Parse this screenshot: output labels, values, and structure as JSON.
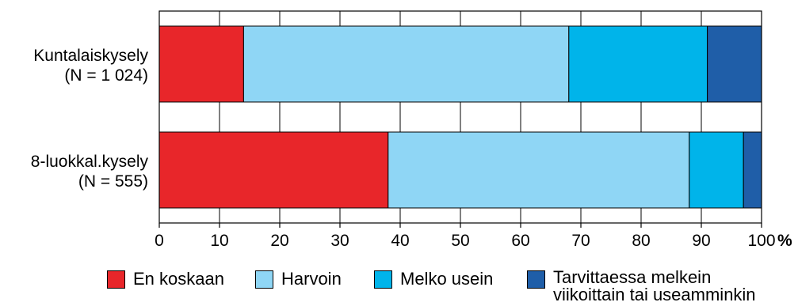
{
  "chart_data": {
    "type": "bar",
    "orientation": "horizontal",
    "stacked": true,
    "categories": [
      "Kuntalaiskysely\n(N = 1 024)",
      "8-luokkal.kysely\n(N = 555)"
    ],
    "series": [
      {
        "name": "En koskaan",
        "color": "#e8262a",
        "values": [
          14,
          38
        ]
      },
      {
        "name": "Harvoin",
        "color": "#8fd6f5",
        "values": [
          54,
          50
        ]
      },
      {
        "name": "Melko usein",
        "color": "#00b4ea",
        "values": [
          23,
          9
        ]
      },
      {
        "name": "Tarvittaessa melkein\nviikoittain tai useamminkin",
        "color": "#1f5ea8",
        "values": [
          9,
          3
        ]
      }
    ],
    "xlim": [
      0,
      100
    ],
    "xticks": [
      "0",
      "10",
      "20",
      "30",
      "40",
      "50",
      "60",
      "70",
      "80",
      "90",
      "100"
    ],
    "xunit": "%",
    "grid": true,
    "legend": "bottom"
  }
}
